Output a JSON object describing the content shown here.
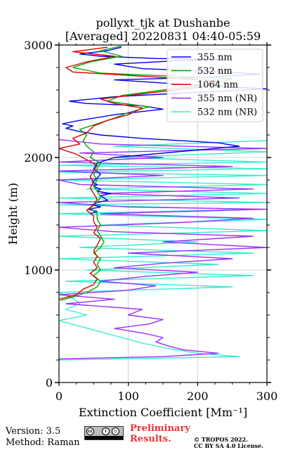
{
  "footer": {
    "version": "Version: 3.5",
    "method": "Method: Raman",
    "preliminary_line1": "Preliminary",
    "preliminary_line2": "Results.",
    "copyright_line1": "© TROPOS 2022.",
    "copyright_line2": "CC BY SA 4.0 License.",
    "license_badge": "cc-by-sa-badge"
  },
  "chart_data": {
    "type": "line",
    "title_line1": "pollyxt_tjk at Dushanbe",
    "title_line2": "[Averaged] 20220831 04:40-05:59",
    "xlabel": "Extinction Coefficient [Mm⁻¹]",
    "ylabel": "Height (m)",
    "xlim": [
      0,
      300
    ],
    "ylim": [
      0,
      3000
    ],
    "x_ticks": [
      0,
      100,
      200,
      300
    ],
    "y_ticks": [
      0,
      1000,
      2000,
      3000
    ],
    "grid": true,
    "legend_position": "top-right",
    "series": [
      {
        "name": "355 nm",
        "color": "#0000ee",
        "points": [
          [
            45,
            1500
          ],
          [
            55,
            1520
          ],
          [
            42,
            1540
          ],
          [
            60,
            1560
          ],
          [
            48,
            1580
          ],
          [
            55,
            1600
          ],
          [
            70,
            1620
          ],
          [
            65,
            1640
          ],
          [
            60,
            1660
          ],
          [
            75,
            1680
          ],
          [
            55,
            1700
          ],
          [
            60,
            1720
          ],
          [
            50,
            1740
          ],
          [
            55,
            1760
          ],
          [
            48,
            1780
          ],
          [
            52,
            1800
          ],
          [
            60,
            1850
          ],
          [
            50,
            1900
          ],
          [
            55,
            1950
          ],
          [
            80,
            2000
          ],
          [
            170,
            2050
          ],
          [
            260,
            2100
          ],
          [
            230,
            2130
          ],
          [
            120,
            2170
          ],
          [
            60,
            2200
          ],
          [
            30,
            2230
          ],
          [
            10,
            2260
          ],
          [
            20,
            2280
          ],
          [
            5,
            2300
          ],
          [
            30,
            2330
          ],
          [
            80,
            2380
          ],
          [
            150,
            2430
          ],
          [
            120,
            2460
          ],
          [
            40,
            2480
          ],
          [
            15,
            2500
          ],
          [
            80,
            2540
          ],
          [
            200,
            2580
          ],
          [
            300,
            2610
          ],
          [
            180,
            2650
          ],
          [
            80,
            2690
          ],
          [
            200,
            2710
          ],
          [
            290,
            2740
          ],
          [
            240,
            2760
          ],
          [
            120,
            2790
          ],
          [
            80,
            2830
          ],
          [
            170,
            2860
          ],
          [
            240,
            2870
          ],
          [
            140,
            2880
          ],
          [
            60,
            2900
          ],
          [
            30,
            2920
          ],
          [
            70,
            2950
          ],
          [
            90,
            2980
          ]
        ]
      },
      {
        "name": "532 nm",
        "color": "#00aa00",
        "points": [
          [
            2,
            730
          ],
          [
            20,
            760
          ],
          [
            40,
            800
          ],
          [
            55,
            850
          ],
          [
            60,
            900
          ],
          [
            50,
            950
          ],
          [
            60,
            1000
          ],
          [
            55,
            1050
          ],
          [
            60,
            1100
          ],
          [
            50,
            1150
          ],
          [
            60,
            1200
          ],
          [
            65,
            1250
          ],
          [
            60,
            1300
          ],
          [
            55,
            1350
          ],
          [
            60,
            1400
          ],
          [
            55,
            1450
          ],
          [
            55,
            1500
          ],
          [
            45,
            1550
          ],
          [
            55,
            1600
          ],
          [
            60,
            1650
          ],
          [
            55,
            1700
          ],
          [
            50,
            1750
          ],
          [
            55,
            1800
          ],
          [
            50,
            1850
          ],
          [
            55,
            1900
          ],
          [
            60,
            1950
          ],
          [
            45,
            2000
          ],
          [
            50,
            2050
          ],
          [
            40,
            2100
          ],
          [
            35,
            2150
          ],
          [
            40,
            2200
          ],
          [
            30,
            2250
          ],
          [
            55,
            2300
          ],
          [
            80,
            2350
          ],
          [
            100,
            2400
          ],
          [
            130,
            2450
          ],
          [
            70,
            2500
          ],
          [
            90,
            2550
          ],
          [
            150,
            2600
          ],
          [
            220,
            2650
          ],
          [
            250,
            2700
          ],
          [
            60,
            2750
          ],
          [
            20,
            2800
          ],
          [
            45,
            2850
          ],
          [
            90,
            2900
          ],
          [
            60,
            2950
          ],
          [
            90,
            2990
          ]
        ]
      },
      {
        "name": "1064 nm",
        "color": "#dd0000",
        "points": [
          [
            0,
            740
          ],
          [
            25,
            780
          ],
          [
            35,
            830
          ],
          [
            50,
            870
          ],
          [
            55,
            920
          ],
          [
            45,
            970
          ],
          [
            55,
            1020
          ],
          [
            50,
            1070
          ],
          [
            55,
            1120
          ],
          [
            50,
            1170
          ],
          [
            55,
            1220
          ],
          [
            60,
            1280
          ],
          [
            50,
            1330
          ],
          [
            55,
            1380
          ],
          [
            50,
            1430
          ],
          [
            50,
            1480
          ],
          [
            40,
            1530
          ],
          [
            50,
            1580
          ],
          [
            55,
            1630
          ],
          [
            50,
            1680
          ],
          [
            45,
            1730
          ],
          [
            50,
            1780
          ],
          [
            45,
            1830
          ],
          [
            50,
            1880
          ],
          [
            55,
            1930
          ],
          [
            40,
            1980
          ],
          [
            25,
            2030
          ],
          [
            0,
            2080
          ],
          [
            30,
            2120
          ],
          [
            20,
            2170
          ],
          [
            40,
            2220
          ],
          [
            50,
            2280
          ],
          [
            70,
            2330
          ],
          [
            100,
            2380
          ],
          [
            120,
            2440
          ],
          [
            80,
            2480
          ],
          [
            60,
            2520
          ],
          [
            140,
            2580
          ],
          [
            210,
            2630
          ],
          [
            230,
            2680
          ],
          [
            100,
            2730
          ],
          [
            20,
            2760
          ],
          [
            10,
            2800
          ],
          [
            40,
            2850
          ],
          [
            80,
            2900
          ],
          [
            20,
            2940
          ],
          [
            70,
            2980
          ]
        ]
      },
      {
        "name": "355 nm (NR)",
        "color": "#9b30ff",
        "points": [
          [
            0,
            210
          ],
          [
            150,
            230
          ],
          [
            230,
            260
          ],
          [
            180,
            290
          ],
          [
            160,
            320
          ],
          [
            140,
            360
          ],
          [
            150,
            400
          ],
          [
            120,
            440
          ],
          [
            80,
            480
          ],
          [
            130,
            520
          ],
          [
            150,
            560
          ],
          [
            100,
            600
          ],
          [
            120,
            650
          ],
          [
            10,
            700
          ],
          [
            80,
            740
          ],
          [
            0,
            780
          ],
          [
            100,
            820
          ],
          [
            140,
            860
          ],
          [
            60,
            900
          ],
          [
            120,
            940
          ],
          [
            200,
            980
          ],
          [
            80,
            1020
          ],
          [
            150,
            1060
          ],
          [
            250,
            1100
          ],
          [
            100,
            1150
          ],
          [
            300,
            1200
          ],
          [
            150,
            1250
          ],
          [
            280,
            1300
          ],
          [
            80,
            1340
          ],
          [
            0,
            1380
          ],
          [
            170,
            1420
          ],
          [
            280,
            1460
          ],
          [
            60,
            1500
          ],
          [
            300,
            1540
          ],
          [
            100,
            1560
          ],
          [
            0,
            1600
          ],
          [
            260,
            1640
          ],
          [
            60,
            1680
          ],
          [
            280,
            1720
          ],
          [
            30,
            1760
          ],
          [
            0,
            1800
          ],
          [
            150,
            1840
          ],
          [
            0,
            1880
          ],
          [
            250,
            1920
          ],
          [
            0,
            1960
          ],
          [
            150,
            2000
          ],
          [
            30,
            2040
          ],
          [
            300,
            2080
          ],
          [
            60,
            2120
          ],
          [
            0,
            2160
          ]
        ]
      },
      {
        "name": "532 nm (NR)",
        "color": "#33eecc",
        "points": [
          [
            0,
            200
          ],
          [
            260,
            230
          ],
          [
            200,
            260
          ],
          [
            160,
            300
          ],
          [
            120,
            350
          ],
          [
            90,
            400
          ],
          [
            60,
            450
          ],
          [
            30,
            500
          ],
          [
            0,
            550
          ],
          [
            40,
            600
          ],
          [
            10,
            650
          ],
          [
            30,
            700
          ],
          [
            20,
            750
          ],
          [
            0,
            800
          ],
          [
            250,
            850
          ],
          [
            10,
            900
          ],
          [
            280,
            950
          ],
          [
            40,
            1000
          ],
          [
            230,
            1050
          ],
          [
            0,
            1100
          ],
          [
            280,
            1150
          ],
          [
            30,
            1200
          ],
          [
            200,
            1250
          ],
          [
            0,
            1300
          ],
          [
            300,
            1350
          ],
          [
            60,
            1400
          ],
          [
            300,
            1450
          ],
          [
            0,
            1500
          ],
          [
            280,
            1540
          ],
          [
            0,
            1580
          ],
          [
            300,
            1600
          ],
          [
            0,
            1640
          ],
          [
            300,
            1680
          ],
          [
            40,
            1720
          ],
          [
            300,
            1760
          ],
          [
            0,
            1800
          ],
          [
            300,
            1840
          ],
          [
            0,
            1870
          ],
          [
            300,
            1900
          ],
          [
            0,
            1930
          ],
          [
            300,
            1960
          ],
          [
            80,
            2000
          ],
          [
            300,
            2050
          ],
          [
            80,
            2100
          ],
          [
            300,
            2150
          ]
        ]
      }
    ]
  }
}
